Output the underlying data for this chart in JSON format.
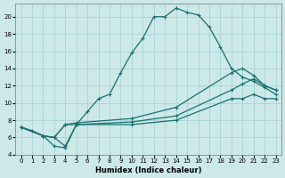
{
  "xlabel": "Humidex (Indice chaleur)",
  "bg_color": "#cce8e8",
  "grid_color": "#aad4d4",
  "line_color": "#1a7070",
  "xlim": [
    -0.5,
    23.5
  ],
  "ylim": [
    4,
    21.5
  ],
  "yticks": [
    4,
    6,
    8,
    10,
    12,
    14,
    16,
    18,
    20
  ],
  "xticks": [
    0,
    1,
    2,
    3,
    4,
    5,
    6,
    7,
    8,
    9,
    10,
    11,
    12,
    13,
    14,
    15,
    16,
    17,
    18,
    19,
    20,
    21,
    22,
    23
  ],
  "line1_x": [
    0,
    1,
    2,
    3,
    4,
    5,
    6,
    7,
    8,
    9,
    10,
    11,
    12,
    13,
    14,
    15,
    16,
    17,
    18,
    19,
    20,
    21,
    22,
    23
  ],
  "line1_y": [
    7.2,
    6.8,
    6.2,
    6.0,
    5.0,
    7.5,
    9.0,
    10.5,
    11.0,
    13.5,
    15.8,
    17.5,
    20.0,
    20.0,
    21.0,
    20.5,
    20.2,
    18.8,
    16.5,
    14.0,
    13.0,
    12.5,
    11.8,
    11.0
  ],
  "line2_x": [
    0,
    2,
    3,
    4,
    5,
    10,
    14,
    19,
    20,
    21,
    22,
    23
  ],
  "line2_y": [
    7.2,
    6.2,
    6.0,
    7.5,
    7.7,
    8.2,
    9.5,
    13.5,
    14.0,
    13.2,
    12.0,
    11.5
  ],
  "line3_x": [
    0,
    2,
    3,
    4,
    5,
    10,
    14,
    19,
    20,
    21,
    22,
    23
  ],
  "line3_y": [
    7.2,
    6.2,
    6.0,
    7.5,
    7.5,
    7.8,
    8.5,
    11.5,
    12.2,
    12.8,
    12.0,
    11.5
  ],
  "line4_x": [
    0,
    2,
    3,
    4,
    5,
    10,
    14,
    19,
    20,
    21,
    22,
    23
  ],
  "line4_y": [
    7.2,
    6.2,
    5.0,
    4.8,
    7.5,
    7.5,
    8.0,
    10.5,
    10.5,
    11.0,
    10.5,
    10.5
  ]
}
